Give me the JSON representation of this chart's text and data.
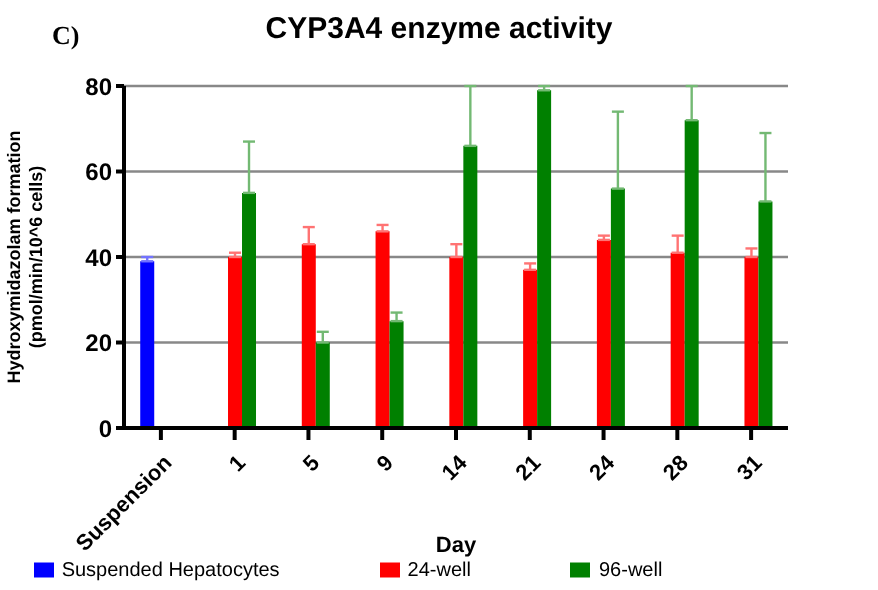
{
  "chart_data": {
    "type": "bar",
    "title": "CYP3A4 enzyme activity",
    "xlabel": "Day",
    "ylabel": "Hydroxymidazolam formation (pmol/min/10^6 cells)",
    "annotations": [
      "C)"
    ],
    "categories": [
      "Suspension",
      "1",
      "5",
      "9",
      "14",
      "21",
      "24",
      "28",
      "31"
    ],
    "series": [
      {
        "name": "Suspended  Hepatocytes",
        "color": "#0000ff",
        "values": [
          39,
          null,
          null,
          null,
          null,
          null,
          null,
          null,
          null
        ],
        "errors": [
          [
            39,
            40
          ],
          null,
          null,
          null,
          null,
          null,
          null,
          null,
          null
        ]
      },
      {
        "name": "24-well",
        "color": "#ff0000",
        "values": [
          null,
          40,
          43,
          46,
          40,
          37,
          44,
          41,
          40
        ],
        "errors": [
          null,
          [
            40,
            41
          ],
          [
            43,
            47
          ],
          [
            46,
            47.5
          ],
          [
            40,
            43
          ],
          [
            37,
            38.5
          ],
          [
            44,
            45
          ],
          [
            41,
            45
          ],
          [
            40,
            42
          ]
        ]
      },
      {
        "name": "96-well",
        "color": "#008000",
        "values": [
          null,
          55,
          20,
          25,
          66,
          79,
          56,
          72,
          53
        ],
        "errors": [
          null,
          [
            55,
            67
          ],
          [
            20,
            22.5
          ],
          [
            25,
            27
          ],
          [
            66,
            80
          ],
          [
            79,
            80
          ],
          [
            56,
            74
          ],
          [
            72,
            80
          ],
          [
            53,
            69
          ]
        ]
      }
    ],
    "ylim": [
      0,
      80
    ],
    "yticks": [
      0,
      20,
      40,
      60,
      80
    ],
    "grid": "y",
    "legend": "bottom"
  }
}
